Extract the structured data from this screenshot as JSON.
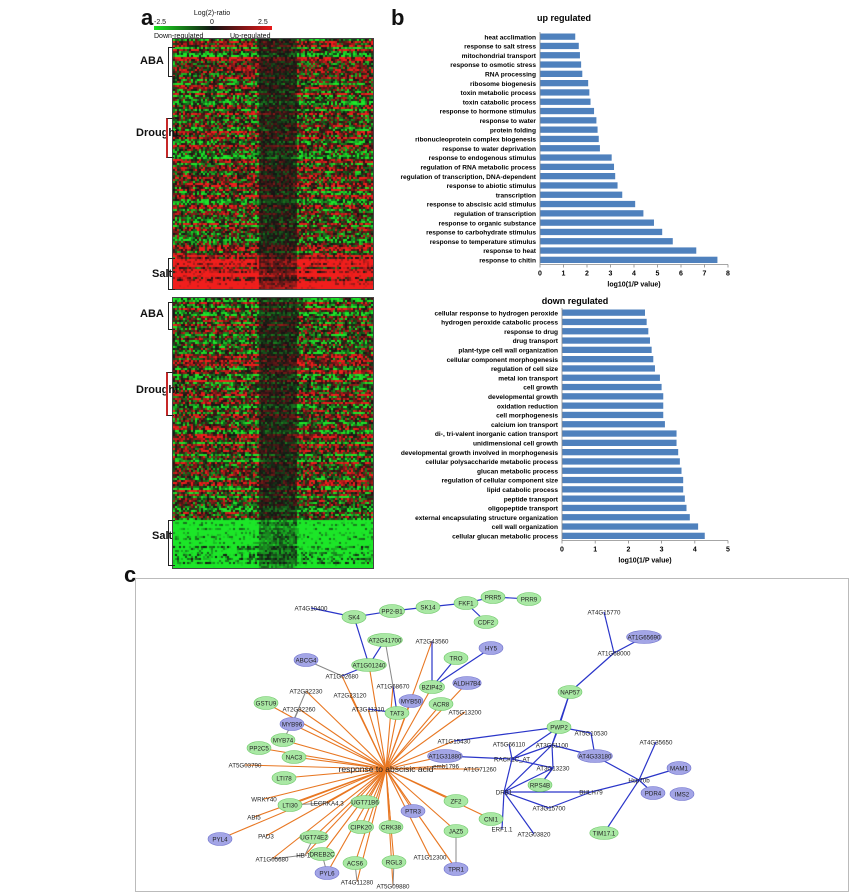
{
  "panels": {
    "a": "a",
    "b": "b",
    "c": "c"
  },
  "heatmap": {
    "legend_title": "Log(2)-ratio",
    "legend_min": "-2.5",
    "legend_mid": "0",
    "legend_max": "2.5",
    "legend_down": "Down-regulated",
    "legend_up": "Up-regulated",
    "top_labels": [
      "ABA",
      "Drought",
      "Salt"
    ],
    "bottom_labels": [
      "ABA",
      "Drought",
      "Salt"
    ],
    "colors": {
      "down": "#19e01f",
      "up": "#e8191a",
      "mid": "#141414"
    }
  },
  "chart_data": [
    {
      "type": "bar",
      "orientation": "horizontal",
      "title": "up regulated",
      "xlabel": "log10(1/P value)",
      "ylabel": "",
      "xlim": [
        0,
        8
      ],
      "xticks": [
        0,
        1,
        2,
        3,
        4,
        5,
        6,
        7,
        8
      ],
      "bar_color": "#4f81bd",
      "categories": [
        "heat acclimation",
        "response to salt stress",
        "mitochondrial transport",
        "response to osmotic stress",
        "RNA processing",
        "ribosome biogenesis",
        "toxin metabolic process",
        "toxin catabolic process",
        "response to hormone stimulus",
        "response to water",
        "protein folding",
        "ribonucleoprotein complex biogenesis",
        "response to water deprivation",
        "response to endogenous stimulus",
        "regulation of RNA metabolic process",
        "regulation of transcription, DNA-dependent",
        "response to abiotic stimulus",
        "transcription",
        "response to abscisic acid stimulus",
        "regulation of transcription",
        "response to organic substance",
        "response to carbohydrate stimulus",
        "response to temperature stimulus",
        "response to heat",
        "response to chitin"
      ],
      "values": [
        1.5,
        1.65,
        1.7,
        1.75,
        1.8,
        2.05,
        2.1,
        2.15,
        2.3,
        2.4,
        2.45,
        2.5,
        2.55,
        3.05,
        3.15,
        3.2,
        3.3,
        3.5,
        4.05,
        4.4,
        4.85,
        5.2,
        5.65,
        6.65,
        7.55
      ]
    },
    {
      "type": "bar",
      "orientation": "horizontal",
      "title": "down regulated",
      "xlabel": "log10(1/P value)",
      "ylabel": "",
      "xlim": [
        0,
        5
      ],
      "xticks": [
        0,
        1,
        2,
        3,
        4,
        5
      ],
      "bar_color": "#4f81bd",
      "categories": [
        "cellular response to hydrogen peroxide",
        "hydrogen peroxide catabolic process",
        "response to drug",
        "drug transport",
        "plant-type cell wall organization",
        "cellular component morphogenesis",
        "regulation of cell size",
        "metal ion transport",
        "cell growth",
        "developmental growth",
        "oxidation reduction",
        "cell morphogenesis",
        "calcium ion transport",
        "di-, tri-valent inorganic cation transport",
        "unidimensional cell growth",
        "developmental growth involved in morphogenesis",
        "cellular polysaccharide metabolic process",
        "glucan metabolic process",
        "regulation of cellular component size",
        "lipid catabolic process",
        "peptide transport",
        "oligopeptide transport",
        "external encapsulating structure organization",
        "cell wall organization",
        "cellular glucan metabolic process"
      ],
      "values": [
        2.5,
        2.55,
        2.6,
        2.65,
        2.7,
        2.75,
        2.8,
        2.95,
        3.0,
        3.05,
        3.05,
        3.05,
        3.1,
        3.45,
        3.45,
        3.5,
        3.55,
        3.6,
        3.65,
        3.65,
        3.7,
        3.75,
        3.85,
        4.1,
        4.3
      ]
    }
  ],
  "network": {
    "center_label": "response to abscisic acid",
    "nodes": [
      {
        "id": "AT4G10400",
        "color": "none"
      },
      {
        "id": "SK4",
        "color": "green"
      },
      {
        "id": "PP2-B1",
        "color": "green"
      },
      {
        "id": "SK14",
        "color": "green"
      },
      {
        "id": "FKF1",
        "color": "green"
      },
      {
        "id": "PRR5",
        "color": "green"
      },
      {
        "id": "PRR9",
        "color": "green"
      },
      {
        "id": "CDF2",
        "color": "green"
      },
      {
        "id": "AT2G41700",
        "color": "green"
      },
      {
        "id": "AT1G01240",
        "color": "green"
      },
      {
        "id": "AT2G43560",
        "color": "none"
      },
      {
        "id": "TRO",
        "color": "green"
      },
      {
        "id": "HY5",
        "color": "purple"
      },
      {
        "id": "ABCG4",
        "color": "purple"
      },
      {
        "id": "AT1G02680",
        "color": "none"
      },
      {
        "id": "AT1G68670",
        "color": "none"
      },
      {
        "id": "BZIP42",
        "color": "green"
      },
      {
        "id": "ALDH7B4",
        "color": "purple"
      },
      {
        "id": "AT2G32230",
        "color": "none"
      },
      {
        "id": "AT2G23120",
        "color": "none"
      },
      {
        "id": "MYB50",
        "color": "purple"
      },
      {
        "id": "TAT3",
        "color": "green"
      },
      {
        "id": "AT5G13200",
        "color": "none"
      },
      {
        "id": "ACR8",
        "color": "green"
      },
      {
        "id": "GSTU9",
        "color": "green"
      },
      {
        "id": "AT2G32260",
        "color": "none"
      },
      {
        "id": "AT3G11310",
        "color": "none"
      },
      {
        "id": "MYB96",
        "color": "purple"
      },
      {
        "id": "MYB74",
        "color": "green"
      },
      {
        "id": "PP2C5",
        "color": "green"
      },
      {
        "id": "AT5G03790",
        "color": "none"
      },
      {
        "id": "NAC3",
        "color": "green"
      },
      {
        "id": "LTI78",
        "color": "green"
      },
      {
        "id": "WRKY40",
        "color": "none"
      },
      {
        "id": "ABI5",
        "color": "none"
      },
      {
        "id": "PYL4",
        "color": "purple"
      },
      {
        "id": "LTI30",
        "color": "green"
      },
      {
        "id": "LECRKA4.3",
        "color": "none"
      },
      {
        "id": "PAD3",
        "color": "none"
      },
      {
        "id": "UGT74E2",
        "color": "green"
      },
      {
        "id": "HB-12",
        "color": "none"
      },
      {
        "id": "AT1G05680",
        "color": "none"
      },
      {
        "id": "UGT71B6",
        "color": "green"
      },
      {
        "id": "CIPK20",
        "color": "green"
      },
      {
        "id": "DREB2C",
        "color": "green"
      },
      {
        "id": "PYL6",
        "color": "purple"
      },
      {
        "id": "ACS6",
        "color": "green"
      },
      {
        "id": "AT4G11280",
        "color": "none"
      },
      {
        "id": "CRK38",
        "color": "green"
      },
      {
        "id": "RGL3",
        "color": "green"
      },
      {
        "id": "AT5G09880",
        "color": "none"
      },
      {
        "id": "PTR3",
        "color": "purple"
      },
      {
        "id": "ZF2",
        "color": "green"
      },
      {
        "id": "JAZ5",
        "color": "green"
      },
      {
        "id": "TPR1",
        "color": "purple"
      },
      {
        "id": "AT1G12300",
        "color": "none"
      },
      {
        "id": "CNI1",
        "color": "green"
      },
      {
        "id": "emb1796",
        "color": "none"
      },
      {
        "id": "AT1G71260",
        "color": "none"
      },
      {
        "id": "AT1G31880",
        "color": "purple"
      },
      {
        "id": "AT1G15430",
        "color": "none"
      },
      {
        "id": "AT4G15770",
        "color": "none"
      },
      {
        "id": "AT1G65690",
        "color": "purple"
      },
      {
        "id": "AT1G68000",
        "color": "none"
      },
      {
        "id": "NAP57",
        "color": "green"
      },
      {
        "id": "PWP2",
        "color": "green"
      },
      {
        "id": "AT5G10530",
        "color": "none"
      },
      {
        "id": "AT3G61100",
        "color": "none"
      },
      {
        "id": "AT5G66110",
        "color": "none"
      },
      {
        "id": "RACK1C_AT",
        "color": "none"
      },
      {
        "id": "AT3G13230",
        "color": "none"
      },
      {
        "id": "AT4G33180",
        "color": "purple"
      },
      {
        "id": "AT4G35650",
        "color": "none"
      },
      {
        "id": "MAM1",
        "color": "purple"
      },
      {
        "id": "Hsp70b",
        "color": "none"
      },
      {
        "id": "PDR4",
        "color": "purple"
      },
      {
        "id": "IMS2",
        "color": "purple"
      },
      {
        "id": "RPS4B",
        "color": "green"
      },
      {
        "id": "DRB1",
        "color": "none"
      },
      {
        "id": "BHLH79",
        "color": "none"
      },
      {
        "id": "AT3G15700",
        "color": "none"
      },
      {
        "id": "ERF1.1",
        "color": "none"
      },
      {
        "id": "AT2G03820",
        "color": "none"
      },
      {
        "id": "TIM17.1",
        "color": "green"
      }
    ]
  }
}
